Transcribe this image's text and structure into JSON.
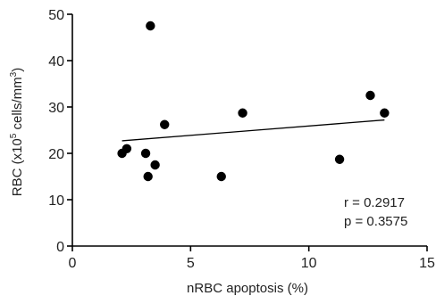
{
  "chart_data": {
    "type": "scatter",
    "xlabel": "nRBC apoptosis (%)",
    "ylabel_main": "RBC (x10",
    "ylabel_sup": "5",
    "ylabel_mid": " cells/mm",
    "ylabel_sup2": "3",
    "ylabel_end": ")",
    "xlim": [
      0,
      15
    ],
    "ylim": [
      0,
      50
    ],
    "xticks": [
      0,
      5,
      10,
      15
    ],
    "yticks": [
      0,
      10,
      20,
      30,
      40,
      50
    ],
    "points": [
      {
        "x": 2.1,
        "y": 20
      },
      {
        "x": 2.3,
        "y": 21
      },
      {
        "x": 3.1,
        "y": 20
      },
      {
        "x": 3.2,
        "y": 15
      },
      {
        "x": 3.3,
        "y": 47.5
      },
      {
        "x": 3.5,
        "y": 17.5
      },
      {
        "x": 3.9,
        "y": 26.2
      },
      {
        "x": 6.3,
        "y": 15
      },
      {
        "x": 7.2,
        "y": 28.7
      },
      {
        "x": 11.3,
        "y": 18.7
      },
      {
        "x": 12.6,
        "y": 32.5
      },
      {
        "x": 13.2,
        "y": 28.7
      }
    ],
    "fit_line": {
      "x": [
        2.1,
        13.2
      ],
      "y": [
        22.7,
        27.2
      ]
    },
    "annotations": {
      "r": "r = 0.2917",
      "p": "p = 0.3575"
    },
    "grid": false,
    "legend": "none"
  }
}
